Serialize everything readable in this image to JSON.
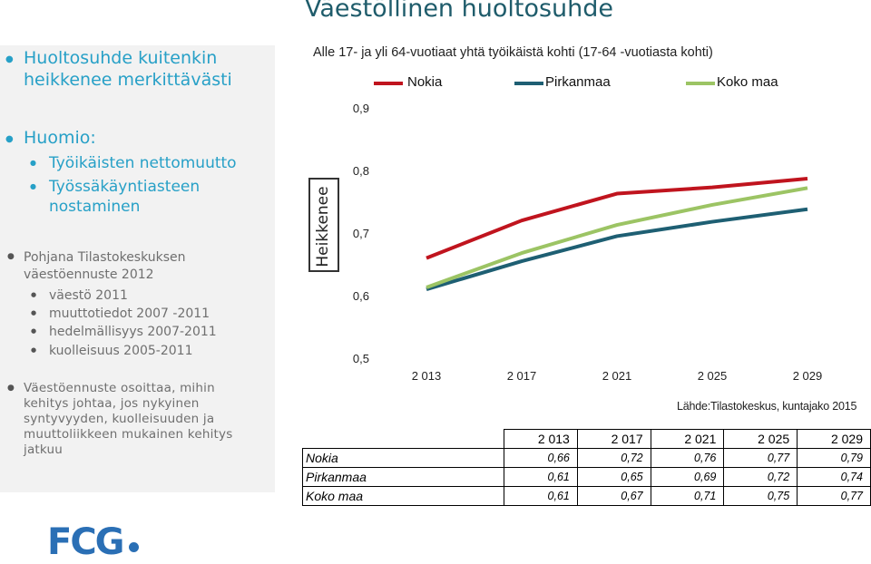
{
  "page_title": "Väestöllinen huoltosuhde",
  "left_panel": {
    "headline": [
      "Huoltosuhde kuitenkin",
      "heikkenee merkittävästi"
    ],
    "note_heading": "Huomio:",
    "note_items": [
      [
        "Työikäisten nettomuutto"
      ],
      [
        "Työssäkäyntiasteen",
        "nostaminen"
      ]
    ],
    "source_heading": [
      "Pohjana Tilastokeskuksen",
      "väestöennuste 2012"
    ],
    "source_items": [
      "väestö 2011",
      "muuttotiedot 2007 -2011",
      "hedelmällisyys 2007-2011",
      "kuolleisuus 2005-2011"
    ],
    "projection_text": [
      "Väestöennuste osoittaa, mihin",
      "kehitys johtaa, jos nykyinen",
      "syntyvyyden, kuolleisuuden ja",
      "muuttoliikkeen mukainen kehitys",
      "jatkuu"
    ]
  },
  "chart_data": {
    "type": "line",
    "subtitle": "Alle 17- ja yli 64-vuotiaat yhtä työikäistä kohti (17-64 -vuotiasta kohti)",
    "trend_label": "Heikkenee",
    "categories": [
      "2 013",
      "2 017",
      "2 021",
      "2 025",
      "2 029"
    ],
    "y_ticks": [
      "0,9",
      "0,8",
      "0,7",
      "0,6",
      "0,5"
    ],
    "ylim": [
      0.5,
      0.9
    ],
    "grid": false,
    "legend_position": "top",
    "series": [
      {
        "name": "Nokia",
        "color": "#c0141e",
        "values": [
          0.66,
          0.72,
          0.763,
          0.773,
          0.787
        ]
      },
      {
        "name": "Pirkanmaa",
        "color": "#1e5f73",
        "values": [
          0.61,
          0.655,
          0.695,
          0.718,
          0.738
        ]
      },
      {
        "name": "Koko maa",
        "color": "#9cc464",
        "values": [
          0.613,
          0.668,
          0.713,
          0.745,
          0.772
        ]
      }
    ],
    "source_note": "Lähde:Tilastokeskus, kuntajako 2015"
  },
  "table": {
    "headers": [
      "2 013",
      "2 017",
      "2 021",
      "2 025",
      "2 029"
    ],
    "rows": [
      {
        "label": "Nokia",
        "values": [
          "0,66",
          "0,72",
          "0,76",
          "0,77",
          "0,79"
        ]
      },
      {
        "label": "Pirkanmaa",
        "values": [
          "0,61",
          "0,65",
          "0,69",
          "0,72",
          "0,74"
        ]
      },
      {
        "label": "Koko maa",
        "values": [
          "0,61",
          "0,67",
          "0,71",
          "0,75",
          "0,77"
        ]
      }
    ]
  },
  "logo_text": "FCG"
}
